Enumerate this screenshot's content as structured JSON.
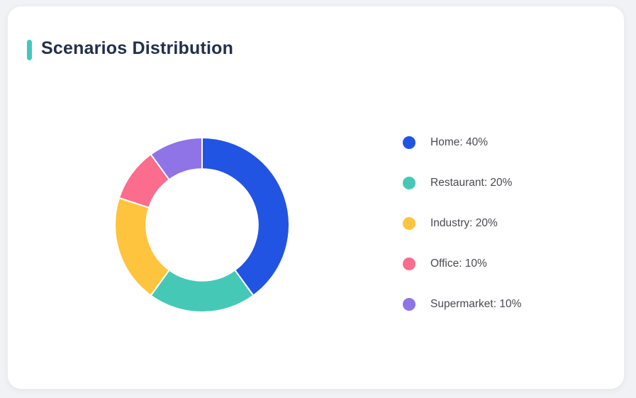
{
  "page": {
    "background_color": "#F1F2F6"
  },
  "card": {
    "background_color": "#FFFFFF"
  },
  "header": {
    "title": "Scenarios Distribution",
    "accent_color": "#41C8BE",
    "title_color": "#233049"
  },
  "chart_data": {
    "type": "pie",
    "subtype": "donut",
    "title": "Scenarios Distribution",
    "start_angle_deg": 0,
    "direction": "clockwise",
    "inner_radius_ratio": 0.64,
    "separator_color": "#FFFFFF",
    "legend_position": "right",
    "segments": [
      {
        "label": "Home",
        "value": 40,
        "unit": "%",
        "color": "#2254E3",
        "legend_text": "Home: 40%"
      },
      {
        "label": "Restaurant",
        "value": 20,
        "unit": "%",
        "color": "#45C9B6",
        "legend_text": "Restaurant: 20%"
      },
      {
        "label": "Industry",
        "value": 20,
        "unit": "%",
        "color": "#FEC43D",
        "legend_text": "Industry: 20%"
      },
      {
        "label": "Office",
        "value": 10,
        "unit": "%",
        "color": "#FB6C8D",
        "legend_text": "Office: 10%"
      },
      {
        "label": "Supermarket",
        "value": 10,
        "unit": "%",
        "color": "#8F74E7",
        "legend_text": "Supermarket: 10%"
      }
    ]
  }
}
